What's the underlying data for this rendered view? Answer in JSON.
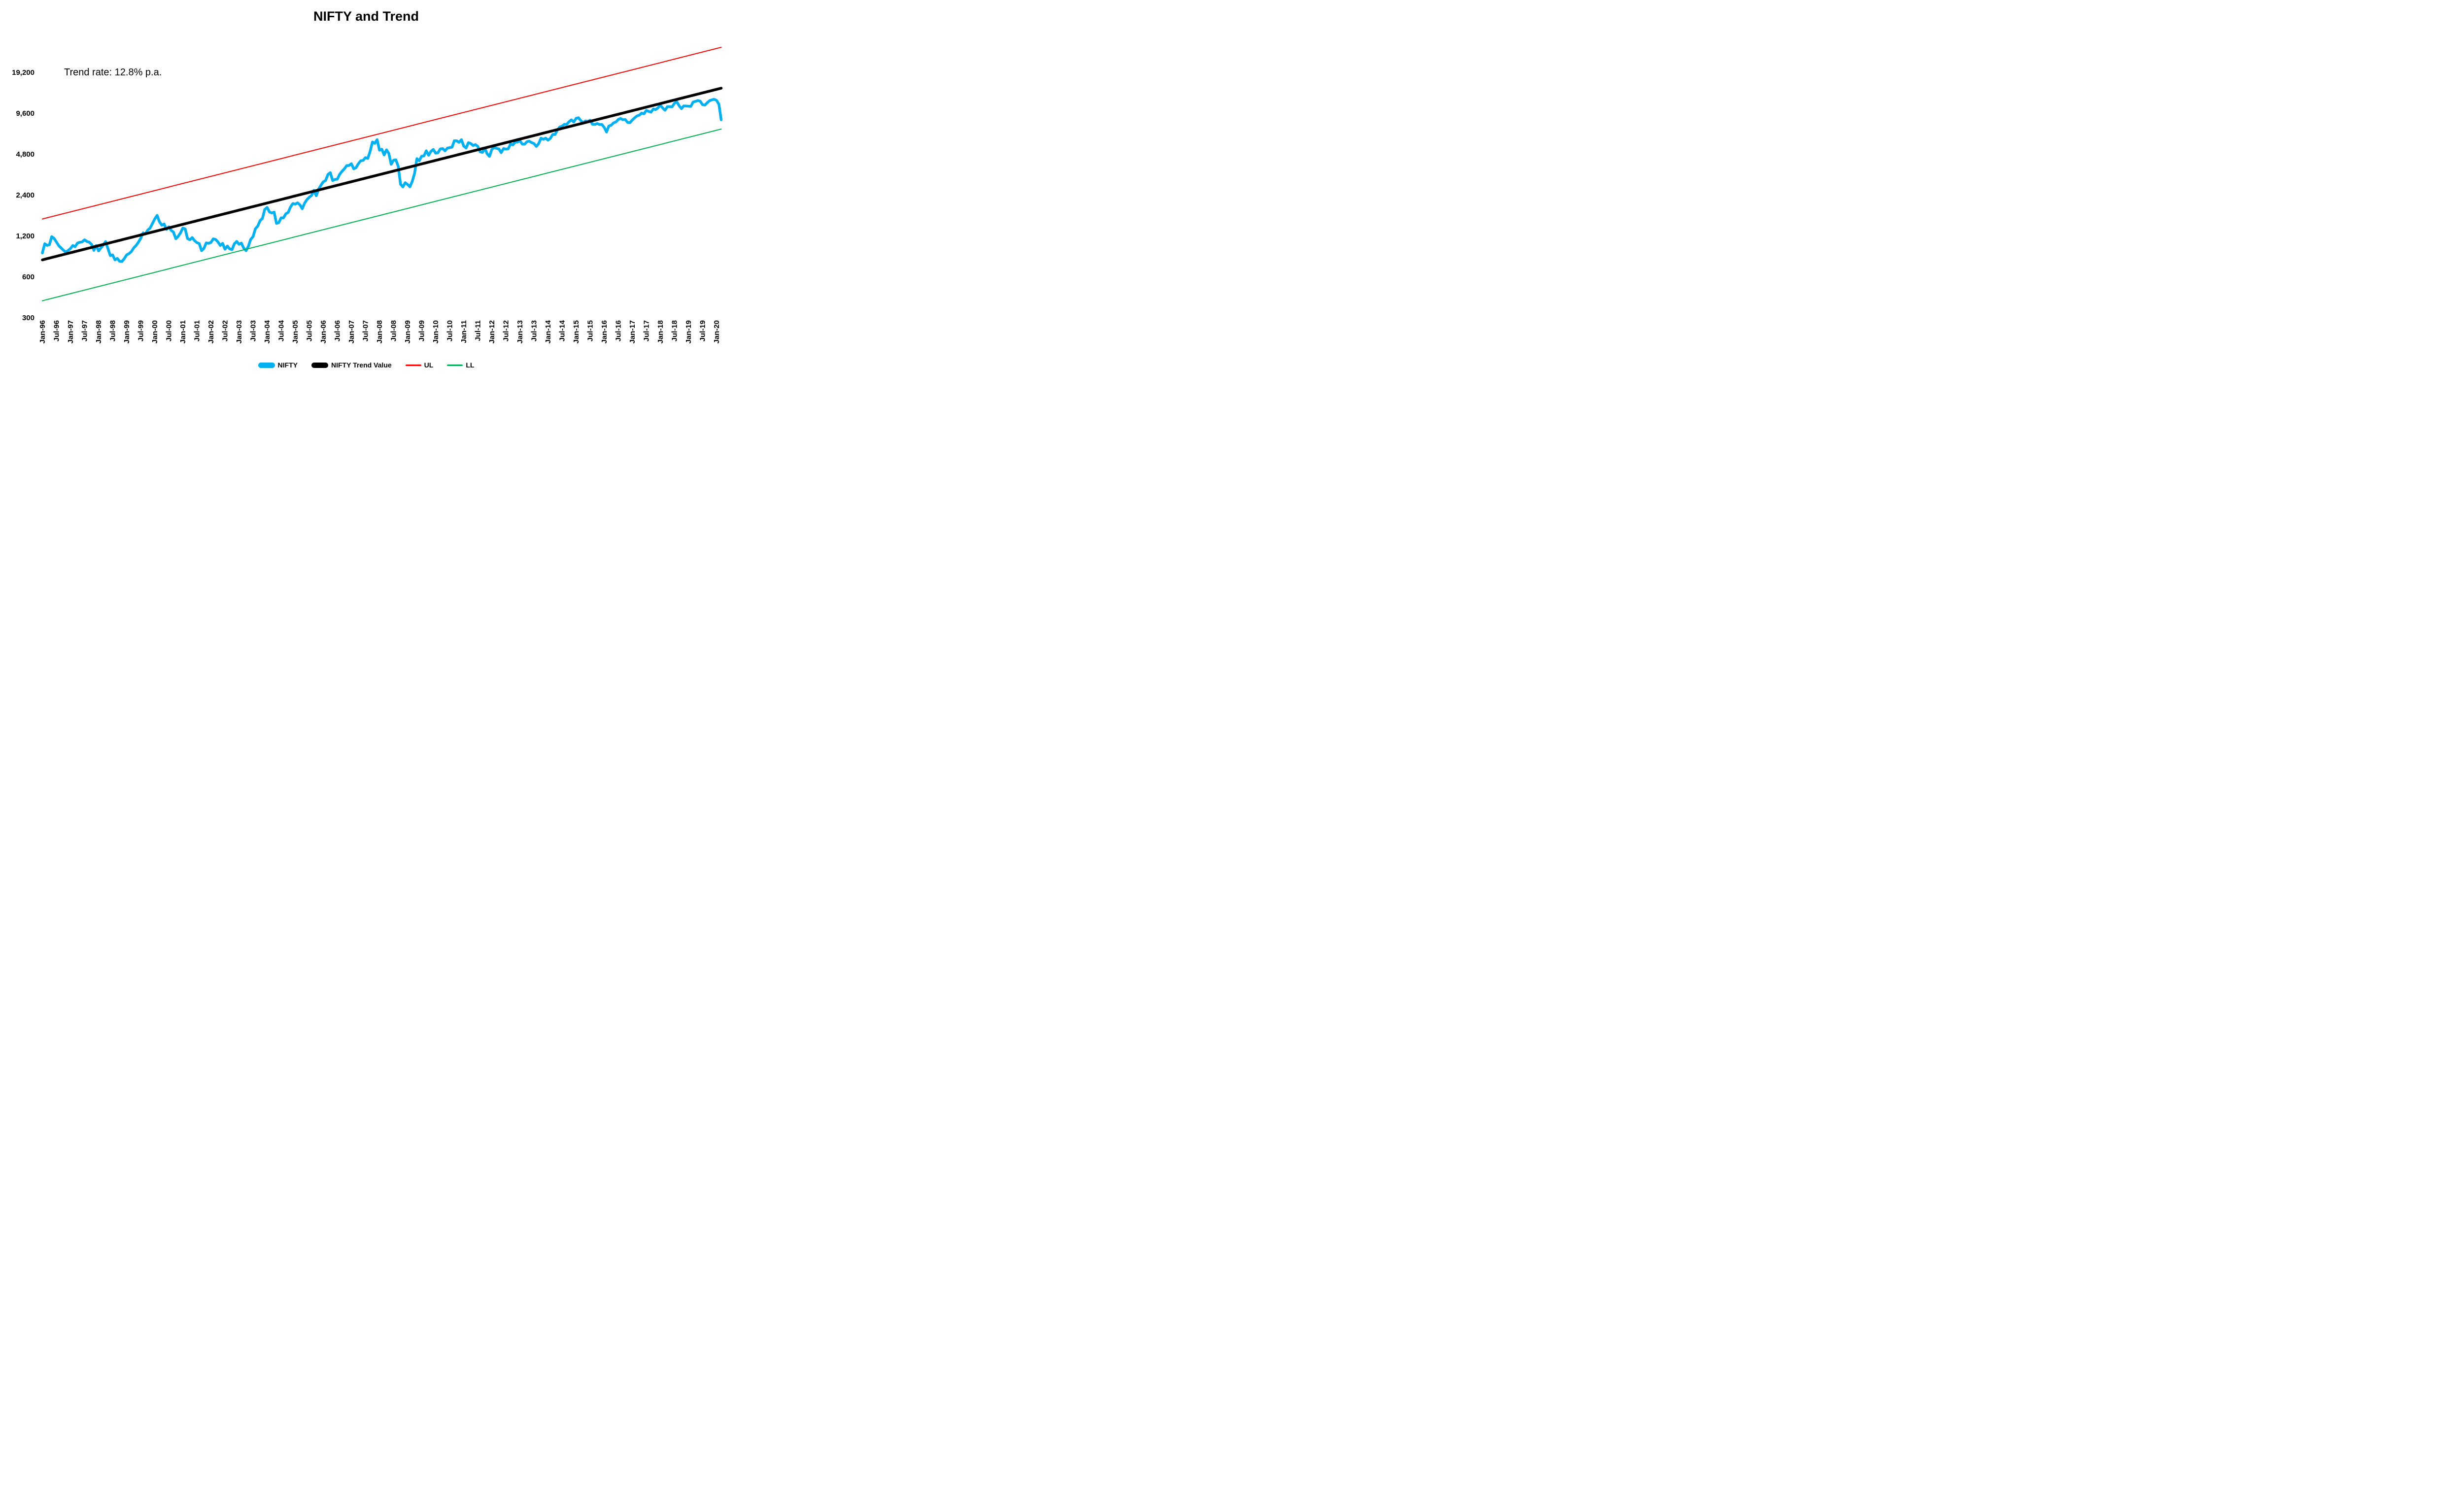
{
  "title": "NIFTY and Trend",
  "annotation": "Trend rate: 12.8% p.a.",
  "legend": {
    "items": [
      {
        "label": "NIFTY",
        "color": "#00B0F0",
        "marker": "thick"
      },
      {
        "label": "NIFTY Trend Value",
        "color": "#000000",
        "marker": "thick"
      },
      {
        "label": "UL",
        "color": "#FF0000",
        "marker": "thin"
      },
      {
        "label": "LL",
        "color": "#00B050",
        "marker": "thin"
      }
    ]
  },
  "chart_data": {
    "type": "line",
    "title": "NIFTY and Trend",
    "x_start": "Jan-1996",
    "x_end": "Mar-2020",
    "frequency": "monthly",
    "y_axis": {
      "scale": "log2",
      "ticks": [
        19200,
        9600,
        4800,
        2400,
        1200,
        600,
        300
      ],
      "tick_labels": [
        "19,200",
        "9,600",
        "4,800",
        "2,400",
        "1,200",
        "600",
        "300"
      ]
    },
    "x_tick_labels": [
      "Jan-96",
      "Jul-96",
      "Jan-97",
      "Jul-97",
      "Jan-98",
      "Jul-98",
      "Jan-99",
      "Jul-99",
      "Jan-00",
      "Jul-00",
      "Jan-01",
      "Jul-01",
      "Jan-02",
      "Jul-02",
      "Jan-03",
      "Jul-03",
      "Jan-04",
      "Jul-04",
      "Jan-05",
      "Jul-05",
      "Jan-06",
      "Jul-06",
      "Jan-07",
      "Jul-07",
      "Jan-08",
      "Jul-08",
      "Jan-09",
      "Jul-09",
      "Jan-10",
      "Jul-10",
      "Jan-11",
      "Jul-11",
      "Jan-12",
      "Jul-12",
      "Jan-13",
      "Jul-13",
      "Jan-14",
      "Jul-14",
      "Jan-15",
      "Jul-15",
      "Jan-16",
      "Jul-16",
      "Jan-17",
      "Jul-17",
      "Jan-18",
      "Jul-18",
      "Jan-19",
      "Jul-19",
      "Jan-20"
    ],
    "x_tick_month_step": 6,
    "series": [
      {
        "name": "NIFTY",
        "color": "#00B0F0",
        "stroke_width": 5.5,
        "values": [
          899,
          1052,
          1023,
          1034,
          1186,
          1150,
          1083,
          1016,
          978,
          942,
          913,
          938,
          970,
          1020,
          1000,
          1063,
          1077,
          1086,
          1124,
          1093,
          1080,
          1040,
          940,
          1020,
          930,
          980,
          1030,
          1090,
          970,
          860,
          870,
          800,
          820,
          780,
          778,
          818,
          870,
          890,
          920,
          980,
          1020,
          1078,
          1150,
          1265,
          1240,
          1325,
          1370,
          1480,
          1600,
          1700,
          1528,
          1440,
          1470,
          1340,
          1400,
          1320,
          1280,
          1144,
          1190,
          1264,
          1371,
          1351,
          1148,
          1125,
          1167,
          1108,
          1072,
          1054,
          935,
          972,
          1067,
          1059,
          1075,
          1142,
          1130,
          1085,
          1021,
          1058,
          958,
          1011,
          963,
          951,
          1050,
          1094,
          1042,
          1063,
          978,
          934,
          1007,
          1134,
          1186,
          1357,
          1417,
          1556,
          1615,
          1880,
          1946,
          1800,
          1772,
          1796,
          1484,
          1506,
          1632,
          1632,
          1746,
          1787,
          1959,
          2081,
          2058,
          2103,
          2036,
          1903,
          2088,
          2221,
          2312,
          2385,
          2601,
          2370,
          2652,
          2837,
          3001,
          3075,
          3403,
          3508,
          3071,
          3128,
          3143,
          3414,
          3588,
          3744,
          3955,
          3966,
          4083,
          3745,
          3822,
          4088,
          4296,
          4318,
          4529,
          4464,
          5021,
          5901,
          5763,
          6139,
          5137,
          5224,
          4735,
          5166,
          4870,
          4041,
          4333,
          4360,
          3921,
          2886,
          2755,
          2959,
          2875,
          2764,
          3021,
          3474,
          4449,
          4291,
          4636,
          4662,
          5084,
          4712,
          5033,
          5201,
          4882,
          4922,
          5249,
          5278,
          5086,
          5313,
          5368,
          5403,
          6030,
          6018,
          5863,
          6135,
          5506,
          5333,
          5834,
          5750,
          5560,
          5647,
          5482,
          5001,
          4943,
          5327,
          4832,
          4624,
          5199,
          5385,
          5296,
          5248,
          4924,
          5279,
          5229,
          5259,
          5703,
          5620,
          5880,
          5905,
          6035,
          5693,
          5683,
          5930,
          5986,
          5842,
          5742,
          5472,
          5735,
          6299,
          6176,
          6304,
          6090,
          6277,
          6704,
          6696,
          7230,
          7611,
          7721,
          7954,
          7965,
          8322,
          8588,
          8283,
          8809,
          8902,
          8491,
          8182,
          8434,
          8369,
          8533,
          7971,
          7949,
          8066,
          7935,
          7946,
          7564,
          6987,
          7738,
          7850,
          8160,
          8288,
          8639,
          8786,
          8611,
          8626,
          8225,
          8186,
          8561,
          8880,
          9174,
          9304,
          9621,
          9521,
          10077,
          9918,
          9789,
          10335,
          10227,
          10531,
          11028,
          10493,
          10114,
          10739,
          10736,
          10714,
          11357,
          11681,
          10930,
          10386,
          10877,
          10863,
          10831,
          10793,
          11624,
          11748,
          11923,
          11789,
          11118,
          11023,
          11474,
          11877,
          12056,
          12168,
          11962,
          11202,
          8598
        ]
      },
      {
        "name": "NIFTY Trend Value",
        "color": "#000000",
        "stroke_width": 5.5,
        "computed": {
          "start_value": 800,
          "annual_growth_pct": 12.8
        }
      },
      {
        "name": "UL",
        "color": "#FF0000",
        "stroke_width": 2,
        "computed": {
          "multiplier_of_trend": 2
        }
      },
      {
        "name": "LL",
        "color": "#00B050",
        "stroke_width": 2,
        "computed": {
          "multiplier_of_trend": 0.5
        }
      }
    ],
    "annotations": [
      "Trend rate: 12.8% p.a."
    ],
    "grid": false,
    "legend_position": "bottom"
  }
}
